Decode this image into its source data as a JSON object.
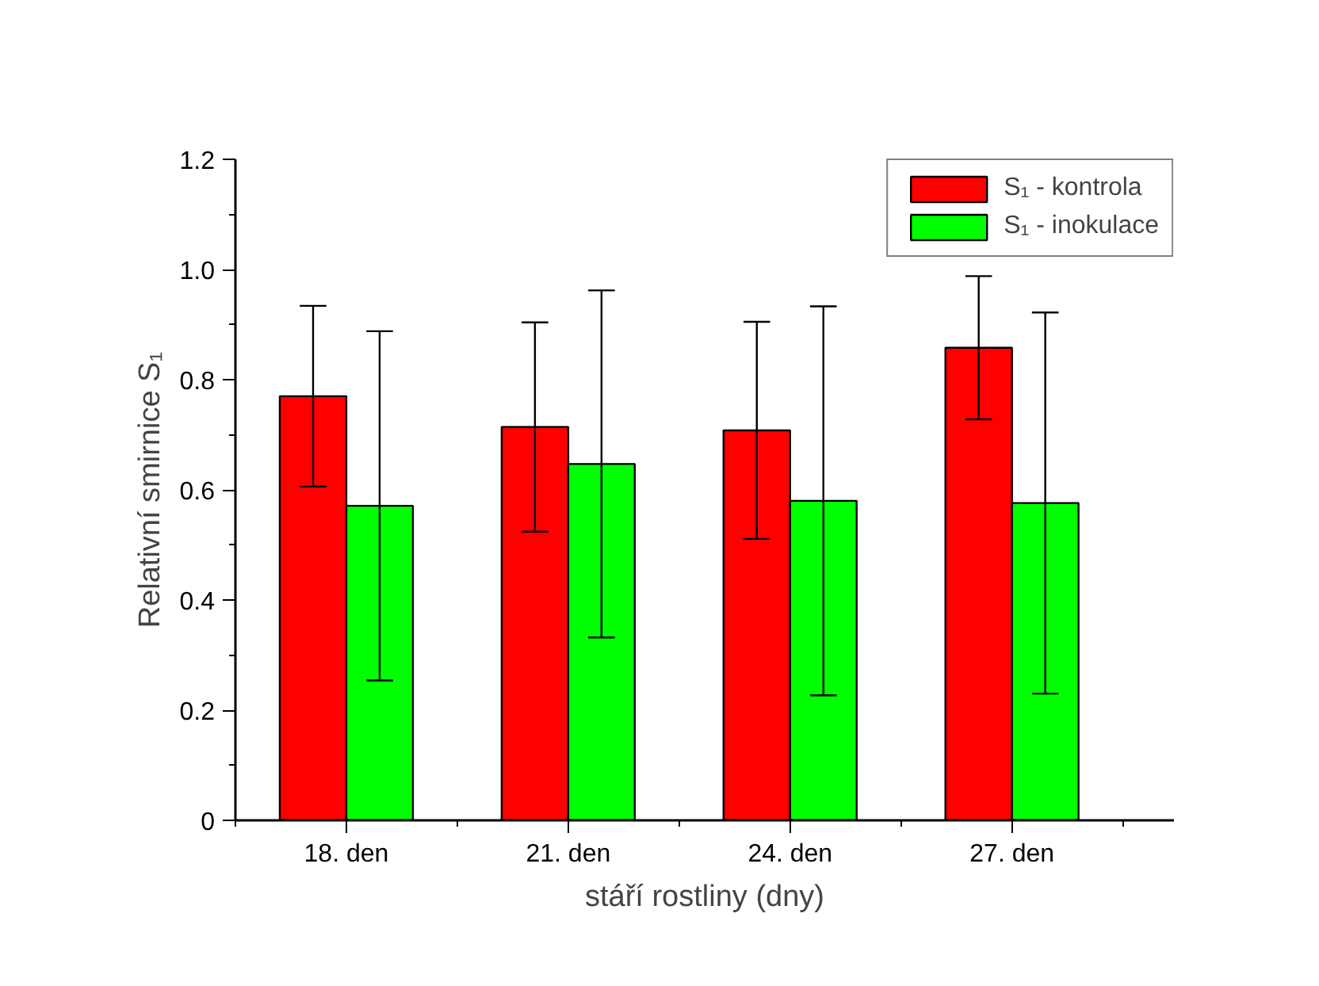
{
  "chart_data": {
    "type": "bar",
    "xlabel": "stáří rostliny (dny)",
    "ylabel": "Relativní smirnice S₁",
    "categories": [
      "18. den",
      "21. den",
      "24. den",
      "27. den"
    ],
    "series": [
      {
        "name": "S₁ - kontrola",
        "color": "#ff0000",
        "values": [
          0.77,
          0.714,
          0.708,
          0.858
        ],
        "errors": [
          0.164,
          0.19,
          0.197,
          0.13
        ]
      },
      {
        "name": "S₁ - inokulace",
        "color": "#00ff00",
        "values": [
          0.571,
          0.647,
          0.58,
          0.576
        ],
        "errors": [
          0.317,
          0.315,
          0.353,
          0.346
        ]
      }
    ],
    "ylim": [
      0,
      1.2
    ],
    "yticks": [
      0,
      {
        "value": 0.2,
        "label": "0.2"
      },
      {
        "value": 0.4,
        "label": "0.4"
      },
      {
        "value": 0.6,
        "label": "0.6"
      },
      {
        "value": 0.8,
        "label": "0.8"
      },
      {
        "value": 1.0,
        "label": "1.0"
      },
      {
        "value": 1.2,
        "label": "1.2"
      }
    ],
    "grid": false,
    "legend": "top right"
  }
}
